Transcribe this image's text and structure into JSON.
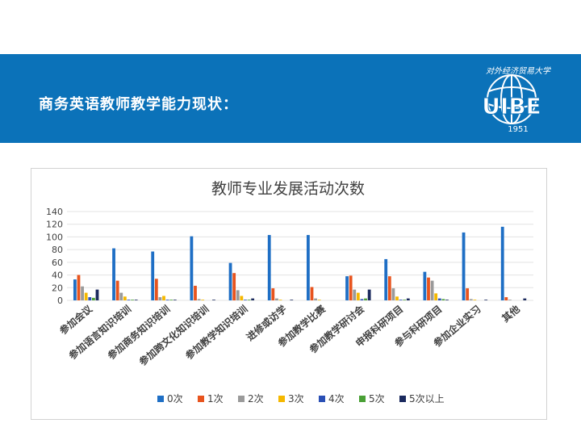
{
  "slide": {
    "title": "商务英语教师教学能力现状："
  },
  "logo": {
    "text": "UIBE",
    "year": "1951",
    "arc_text": "对外经济贸易大学"
  },
  "colors": {
    "banner": "#0b72b9",
    "series": [
      "#1f6fc5",
      "#e8541e",
      "#9a9a9a",
      "#f5b800",
      "#2a4fb5",
      "#4aa036",
      "#1b2a5e"
    ]
  },
  "chart_data": {
    "type": "bar",
    "title": "教师专业发展活动次数",
    "categories": [
      "参加会议",
      "参加语言知识培训",
      "参加商务知识培训",
      "参加跨文化知识培训",
      "参加教学知识培训",
      "进修或访学",
      "参加教学比赛",
      "参加教学研讨会",
      "申报科研项目",
      "参与科研项目",
      "参加企业实习",
      "其他"
    ],
    "series": [
      {
        "name": "0次",
        "values": [
          33,
          82,
          77,
          101,
          59,
          103,
          103,
          38,
          65,
          45,
          107,
          116
        ]
      },
      {
        "name": "1次",
        "values": [
          40,
          31,
          34,
          23,
          43,
          19,
          21,
          39,
          38,
          36,
          19,
          5
        ]
      },
      {
        "name": "2次",
        "values": [
          22,
          12,
          5,
          2,
          16,
          3,
          3,
          17,
          19,
          31,
          2,
          1
        ]
      },
      {
        "name": "3次",
        "values": [
          12,
          6,
          7,
          1,
          7,
          1,
          1,
          12,
          6,
          11,
          1,
          0
        ]
      },
      {
        "name": "4次",
        "values": [
          5,
          1,
          1,
          0,
          1,
          0,
          0,
          2,
          1,
          3,
          0,
          0
        ]
      },
      {
        "name": "5次",
        "values": [
          4,
          1,
          1,
          0,
          1,
          0,
          0,
          3,
          1,
          2,
          0,
          0
        ]
      },
      {
        "name": "5次以上",
        "values": [
          17,
          1,
          1,
          1,
          3,
          1,
          0,
          17,
          3,
          1,
          1,
          3
        ]
      }
    ],
    "y_ticks": [
      0,
      20,
      40,
      60,
      80,
      100,
      120,
      140
    ],
    "ylim": [
      0,
      140
    ],
    "grid": true,
    "legend_position": "bottom"
  }
}
